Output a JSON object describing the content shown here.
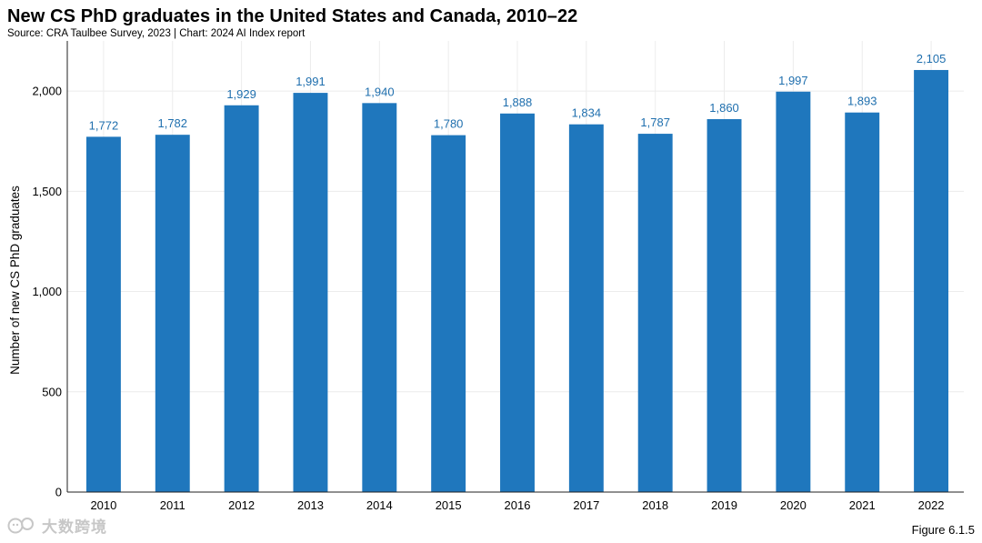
{
  "title": "New CS PhD graduates in the United States and Canada, 2010–22",
  "source": "Source: CRA Taulbee Survey, 2023 | Chart: 2024 AI Index report",
  "figure_label": "Figure 6.1.5",
  "watermark": "大数跨境",
  "colors": {
    "bar": "#1f77bd",
    "data_label": "#1f6fae",
    "grid": "#ececec",
    "axis": "#222222"
  },
  "chart_data": {
    "type": "bar",
    "title": "New CS PhD graduates in the United States and Canada, 2010–22",
    "xlabel": "",
    "ylabel": "Number of new CS PhD graduates",
    "categories": [
      "2010",
      "2011",
      "2012",
      "2013",
      "2014",
      "2015",
      "2016",
      "2017",
      "2018",
      "2019",
      "2020",
      "2021",
      "2022"
    ],
    "values": [
      1772,
      1782,
      1929,
      1991,
      1940,
      1780,
      1888,
      1834,
      1787,
      1860,
      1997,
      1893,
      2105
    ],
    "data_labels": [
      "1,772",
      "1,782",
      "1,929",
      "1,991",
      "1,940",
      "1,780",
      "1,888",
      "1,834",
      "1,787",
      "1,860",
      "1,997",
      "1,893",
      "2,105"
    ],
    "yticks": [
      0,
      500,
      1000,
      1500,
      2000
    ],
    "ytick_labels": [
      "0",
      "500",
      "1,000",
      "1,500",
      "2,000"
    ],
    "ylim": [
      0,
      2250
    ],
    "grid": true
  }
}
